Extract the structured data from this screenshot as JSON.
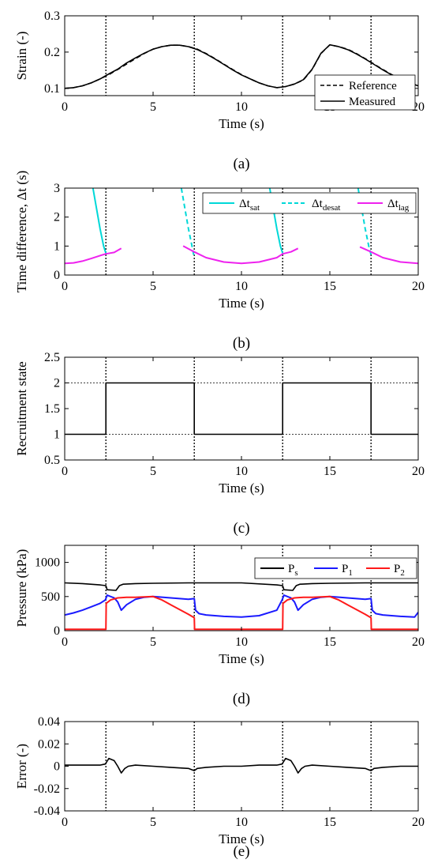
{
  "figure": {
    "events_x": [
      2.33,
      7.33,
      12.33,
      17.33
    ]
  },
  "chart_data": [
    {
      "id": "a",
      "type": "line",
      "caption": "(a)",
      "xlabel": "Time (s)",
      "ylabel": "Strain (-)",
      "xlim": [
        0,
        20
      ],
      "ylim": [
        0.08,
        0.3
      ],
      "xticks": [
        0,
        5,
        10,
        15,
        20
      ],
      "yticks": [
        0.1,
        0.2,
        0.3
      ],
      "xtick_labels": [
        "0",
        "5",
        "10",
        "15",
        "20"
      ],
      "ytick_labels": [
        "0.1",
        "0.2",
        "0.3"
      ],
      "grid": false,
      "legend_position": "bottom-right",
      "series": [
        {
          "name": "Reference",
          "color": "#000000",
          "dash": "dashed",
          "x": [
            0,
            0.5,
            1,
            1.5,
            2,
            2.5,
            3,
            3.5,
            4,
            4.5,
            5,
            5.5,
            6,
            6.5,
            7,
            7.5,
            8,
            8.5,
            9,
            9.5,
            10,
            10.5,
            11,
            11.5,
            12,
            12.5,
            13,
            13.5,
            14,
            14.5,
            15,
            15.5,
            16,
            16.5,
            17,
            17.5,
            18,
            18.5,
            19,
            19.5,
            20
          ],
          "y": [
            0.1,
            0.102,
            0.107,
            0.115,
            0.126,
            0.138,
            0.152,
            0.167,
            0.182,
            0.196,
            0.208,
            0.215,
            0.219,
            0.219,
            0.215,
            0.208,
            0.196,
            0.182,
            0.167,
            0.152,
            0.138,
            0.126,
            0.115,
            0.107,
            0.102,
            0.105,
            0.112,
            0.123,
            0.152,
            0.196,
            0.22,
            0.215,
            0.208,
            0.196,
            0.182,
            0.167,
            0.152,
            0.138,
            0.126,
            0.115,
            0.107
          ]
        },
        {
          "name": "Measured",
          "color": "#000000",
          "dash": "solid",
          "x": [
            0,
            0.5,
            1,
            1.5,
            2,
            2.5,
            3,
            3.5,
            4,
            4.5,
            5,
            5.5,
            6,
            6.5,
            7,
            7.5,
            8,
            8.5,
            9,
            9.5,
            10,
            10.5,
            11,
            11.5,
            12,
            12.5,
            13,
            13.5,
            14,
            14.5,
            15,
            15.5,
            16,
            16.5,
            17,
            17.5,
            18,
            18.5,
            19,
            19.5,
            20
          ],
          "y": [
            0.1,
            0.102,
            0.107,
            0.115,
            0.126,
            0.14,
            0.153,
            0.17,
            0.184,
            0.197,
            0.208,
            0.215,
            0.219,
            0.219,
            0.215,
            0.207,
            0.195,
            0.181,
            0.166,
            0.151,
            0.137,
            0.126,
            0.115,
            0.107,
            0.102,
            0.105,
            0.112,
            0.124,
            0.153,
            0.197,
            0.22,
            0.215,
            0.207,
            0.195,
            0.181,
            0.166,
            0.151,
            0.137,
            0.126,
            0.115,
            0.107
          ]
        }
      ]
    },
    {
      "id": "b",
      "type": "line",
      "caption": "(b)",
      "xlabel": "Time (s)",
      "ylabel": "Time difference, Δt (s)",
      "xlim": [
        0,
        20
      ],
      "ylim": [
        0,
        3
      ],
      "xticks": [
        0,
        5,
        10,
        15,
        20
      ],
      "yticks": [
        0,
        1,
        2,
        3
      ],
      "xtick_labels": [
        "0",
        "5",
        "10",
        "15",
        "20"
      ],
      "ytick_labels": [
        "0",
        "1",
        "2",
        "3"
      ],
      "grid": false,
      "legend_position": "top-right",
      "legend": [
        {
          "base": "Δt",
          "sub": "sat",
          "color": "#00d8d8",
          "dash": "solid"
        },
        {
          "base": "Δt",
          "sub": "desat",
          "color": "#00d8d8",
          "dash": "dashed"
        },
        {
          "base": "Δt",
          "sub": "lag",
          "color": "#ee22ee",
          "dash": "solid"
        }
      ],
      "series": [
        {
          "name": "Δt sat",
          "color": "#00d8d8",
          "dash": "solid",
          "segments": [
            {
              "x": [
                1.6,
                1.8,
                2.0,
                2.2,
                2.33
              ],
              "y": [
                3.0,
                2.3,
                1.6,
                1.0,
                0.75
              ]
            },
            {
              "x": [
                11.6,
                11.8,
                12.0,
                12.2,
                12.33
              ],
              "y": [
                3.0,
                2.3,
                1.6,
                1.0,
                0.75
              ]
            }
          ]
        },
        {
          "name": "Δt desat",
          "color": "#00d8d8",
          "dash": "dashed",
          "segments": [
            {
              "x": [
                6.6,
                6.8,
                7.0,
                7.2,
                7.33
              ],
              "y": [
                3.0,
                2.3,
                1.6,
                1.0,
                0.6
              ]
            },
            {
              "x": [
                16.6,
                16.8,
                17.0,
                17.2,
                17.33
              ],
              "y": [
                3.0,
                2.3,
                1.6,
                1.0,
                0.7
              ]
            }
          ]
        },
        {
          "name": "Δt lag",
          "color": "#ee22ee",
          "dash": "solid",
          "segments": [
            {
              "x": [
                0,
                0.5,
                1,
                1.5,
                2,
                2.33,
                2.8,
                3.2
              ],
              "y": [
                0.4,
                0.42,
                0.48,
                0.57,
                0.67,
                0.73,
                0.78,
                0.92
              ]
            },
            {
              "x": [
                6.7,
                7.33,
                8,
                9,
                10,
                11,
                12,
                12.33,
                12.8,
                13.2
              ],
              "y": [
                1.0,
                0.8,
                0.6,
                0.45,
                0.4,
                0.45,
                0.6,
                0.73,
                0.8,
                0.92
              ]
            },
            {
              "x": [
                16.7,
                17.33,
                18,
                19,
                20
              ],
              "y": [
                0.97,
                0.8,
                0.6,
                0.45,
                0.4
              ]
            }
          ]
        }
      ]
    },
    {
      "id": "c",
      "type": "line",
      "caption": "(c)",
      "xlabel": "Time (s)",
      "ylabel": "Recruitment state",
      "xlim": [
        0,
        20
      ],
      "ylim": [
        0.5,
        2.5
      ],
      "xticks": [
        0,
        5,
        10,
        15,
        20
      ],
      "yticks": [
        0.5,
        1,
        1.5,
        2,
        2.5
      ],
      "xtick_labels": [
        "0",
        "5",
        "10",
        "15",
        "20"
      ],
      "ytick_labels": [
        "0.5",
        "1",
        "1.5",
        "2",
        "2.5"
      ],
      "reference_lines_y": [
        1,
        2
      ],
      "grid": false,
      "series": [
        {
          "color": "#000000",
          "dash": "solid",
          "x": [
            0,
            2.33,
            2.33,
            7.33,
            7.33,
            12.33,
            12.33,
            17.33,
            17.33,
            20
          ],
          "y": [
            1,
            1,
            2,
            2,
            1,
            1,
            2,
            2,
            1,
            1
          ]
        }
      ]
    },
    {
      "id": "d",
      "type": "line",
      "caption": "(d)",
      "xlabel": "Time (s)",
      "ylabel": "Pressure (kPa)",
      "xlim": [
        0,
        20
      ],
      "ylim": [
        0,
        1250
      ],
      "xticks": [
        0,
        5,
        10,
        15,
        20
      ],
      "yticks": [
        0,
        500,
        1000
      ],
      "xtick_labels": [
        "0",
        "5",
        "10",
        "15",
        "20"
      ],
      "ytick_labels": [
        "0",
        "500",
        "1000"
      ],
      "grid": false,
      "legend_position": "top-right",
      "legend": [
        {
          "base": "P",
          "sub": "s",
          "color": "#000000",
          "dash": "solid"
        },
        {
          "base": "P",
          "sub": "1",
          "color": "#1a1aff",
          "dash": "solid"
        },
        {
          "base": "P",
          "sub": "2",
          "color": "#ff1a1a",
          "dash": "solid"
        }
      ],
      "series": [
        {
          "name": "Ps",
          "color": "#000000",
          "dash": "solid",
          "x": [
            0,
            1,
            2,
            2.33,
            2.4,
            2.9,
            3.1,
            3.3,
            4,
            5,
            7,
            7.33,
            8,
            10,
            12,
            12.33,
            12.4,
            12.9,
            13.1,
            13.3,
            14,
            15,
            17,
            17.33,
            18,
            20
          ],
          "y": [
            700,
            690,
            670,
            660,
            600,
            590,
            660,
            680,
            690,
            695,
            700,
            700,
            700,
            700,
            670,
            660,
            600,
            590,
            660,
            680,
            690,
            695,
            700,
            700,
            700,
            700
          ]
        },
        {
          "name": "P1",
          "color": "#1a1aff",
          "dash": "solid",
          "x": [
            0,
            0.5,
            1,
            1.5,
            2,
            2.3,
            2.4,
            2.8,
            3.0,
            3.2,
            3.5,
            4,
            4.5,
            5,
            6,
            7,
            7.33,
            7.4,
            7.6,
            8,
            9,
            10,
            11,
            12,
            12.3,
            12.4,
            12.8,
            13.0,
            13.2,
            13.5,
            14,
            14.5,
            15,
            16,
            17,
            17.33,
            17.4,
            17.6,
            18,
            19,
            19.8,
            20
          ],
          "y": [
            230,
            260,
            300,
            350,
            400,
            450,
            520,
            480,
            420,
            300,
            380,
            460,
            490,
            500,
            480,
            460,
            470,
            300,
            250,
            230,
            210,
            200,
            220,
            300,
            450,
            520,
            480,
            420,
            300,
            380,
            460,
            490,
            500,
            480,
            460,
            470,
            300,
            250,
            230,
            210,
            200,
            270
          ]
        },
        {
          "name": "P2",
          "color": "#ff1a1a",
          "dash": "solid",
          "x": [
            0,
            1,
            2,
            2.33,
            2.35,
            2.6,
            3.0,
            3.5,
            4,
            5,
            5.5,
            6,
            6.5,
            7,
            7.33,
            7.35,
            8,
            10,
            12,
            12.33,
            12.35,
            12.6,
            13.0,
            13.5,
            14,
            15,
            15.5,
            16,
            16.5,
            17,
            17.33,
            17.35,
            18,
            20
          ],
          "y": [
            20,
            20,
            20,
            20,
            400,
            450,
            480,
            490,
            490,
            500,
            450,
            380,
            310,
            240,
            190,
            20,
            20,
            20,
            20,
            20,
            400,
            450,
            480,
            490,
            490,
            500,
            450,
            380,
            310,
            240,
            190,
            20,
            20,
            20
          ]
        }
      ]
    },
    {
      "id": "e",
      "type": "line",
      "caption": "(e)",
      "xlabel": "Time (s)",
      "ylabel": "Error (-)",
      "xlim": [
        0,
        20
      ],
      "ylim": [
        -0.04,
        0.04
      ],
      "xticks": [
        0,
        5,
        10,
        15,
        20
      ],
      "yticks": [
        -0.04,
        -0.02,
        0,
        0.02,
        0.04
      ],
      "xtick_labels": [
        "0",
        "5",
        "10",
        "15",
        "20"
      ],
      "ytick_labels": [
        "-0.04",
        "-0.02",
        "0",
        "0.02",
        "0.04"
      ],
      "grid": false,
      "series": [
        {
          "color": "#000000",
          "dash": "solid",
          "x": [
            0,
            1,
            2,
            2.3,
            2.5,
            2.8,
            3.0,
            3.2,
            3.4,
            3.6,
            4,
            5,
            6,
            7,
            7.33,
            7.5,
            8,
            9,
            10,
            11,
            12,
            12.3,
            12.5,
            12.8,
            13.0,
            13.2,
            13.4,
            13.6,
            14,
            15,
            16,
            17,
            17.33,
            17.5,
            18,
            19,
            20
          ],
          "y": [
            0.001,
            0.001,
            0.001,
            0.002,
            0.007,
            0.005,
            0.0,
            -0.006,
            -0.002,
            0.0,
            0.001,
            0.0,
            -0.001,
            -0.002,
            -0.004,
            -0.002,
            -0.001,
            0.0,
            0.0,
            0.001,
            0.001,
            0.002,
            0.007,
            0.005,
            0.0,
            -0.006,
            -0.002,
            0.0,
            0.001,
            0.0,
            -0.001,
            -0.002,
            -0.004,
            -0.002,
            -0.001,
            0.0,
            0.0
          ]
        }
      ]
    }
  ]
}
